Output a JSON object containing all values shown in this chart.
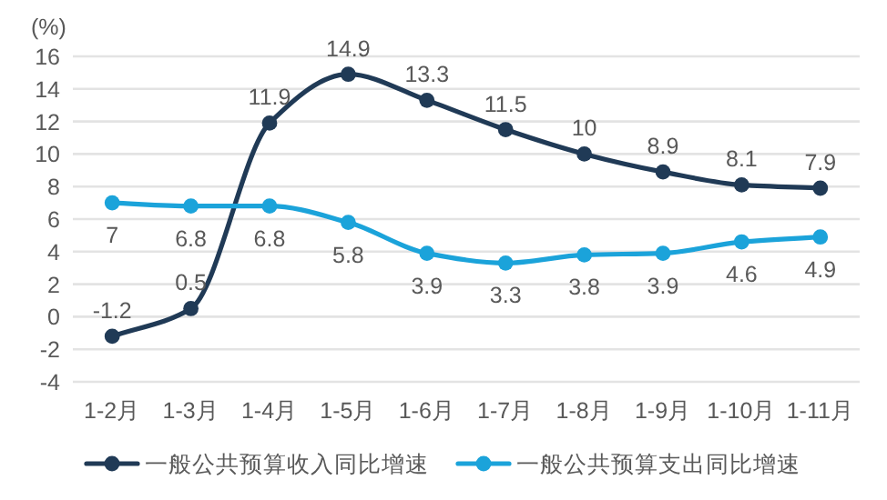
{
  "chart_data": {
    "type": "line",
    "ylabel": "(%)",
    "categories": [
      "1-2月",
      "1-3月",
      "1-4月",
      "1-5月",
      "1-6月",
      "1-7月",
      "1-8月",
      "1-9月",
      "1-10月",
      "1-11月"
    ],
    "series": [
      {
        "name": "一般公共预算收入同比增速",
        "color": "#203a56",
        "values": [
          -1.2,
          0.5,
          11.9,
          14.9,
          13.3,
          11.5,
          10,
          8.9,
          8.1,
          7.9
        ]
      },
      {
        "name": "一般公共预算支出同比增速",
        "color": "#1ba3da",
        "values": [
          7,
          6.8,
          6.8,
          5.8,
          3.9,
          3.3,
          3.8,
          3.9,
          4.6,
          4.9
        ]
      }
    ],
    "ylim": [
      -4,
      16
    ],
    "yticks": [
      -4,
      -2,
      0,
      2,
      4,
      6,
      8,
      10,
      12,
      14,
      16
    ],
    "grid": "y",
    "legend": "bottom",
    "marker": "circle",
    "data_labels": true
  }
}
